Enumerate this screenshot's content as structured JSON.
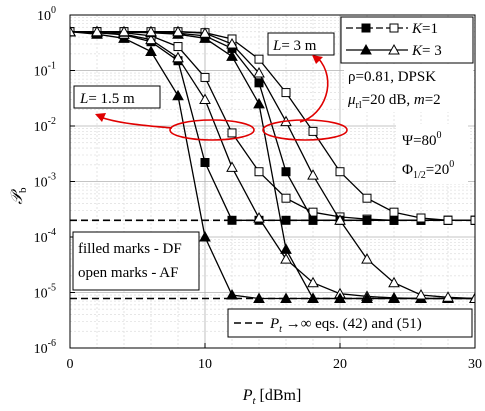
{
  "chart_data": {
    "type": "line",
    "title": "",
    "xlabel_symbol": "P",
    "xlabel_sub": "t",
    "xlabel_unit": " [dBm]",
    "ylabel_symbol": "𝒫",
    "ylabel_sub": "b",
    "xlim": [
      0,
      30
    ],
    "ylim_log10": [
      -6,
      0
    ],
    "ylog": true,
    "grid": true,
    "x_ticks": [
      "0",
      "10",
      "20",
      "30"
    ],
    "y_ticks": [
      "10",
      "10",
      "10",
      "10",
      "10",
      "10",
      "10"
    ],
    "y_tick_exps": [
      "-6",
      "-5",
      "-4",
      "-3",
      "-2",
      "-1",
      "0"
    ],
    "legend": {
      "position": "top-right",
      "entries": [
        {
          "label": "K",
          "value": "=1",
          "marker": "square"
        },
        {
          "label": "K",
          "value": "= 3",
          "marker": "triangle"
        }
      ]
    },
    "series": [
      {
        "group": "L=1.5 m",
        "K": 1,
        "scheme": "DF",
        "filled": true,
        "marker": "square",
        "x": [
          0,
          2,
          4,
          6,
          8,
          10,
          12,
          14,
          16,
          18,
          20,
          22,
          24,
          26,
          28,
          30
        ],
        "y": [
          0.5,
          0.48,
          0.44,
          0.33,
          0.15,
          0.0022,
          0.0002,
          0.0002,
          0.0002,
          0.0002,
          0.0002,
          0.0002,
          0.0002,
          0.0002,
          0.0002,
          0.0002
        ]
      },
      {
        "group": "L=1.5 m",
        "K": 3,
        "scheme": "DF",
        "filled": true,
        "marker": "triangle",
        "x": [
          0,
          2,
          4,
          6,
          8,
          10,
          12,
          14,
          16,
          18,
          20,
          22,
          24,
          26,
          28,
          30
        ],
        "y": [
          0.5,
          0.45,
          0.38,
          0.22,
          0.035,
          0.0001,
          9e-06,
          7.8e-06,
          7.8e-06,
          7.8e-06,
          7.8e-06,
          7.8e-06,
          7.8e-06,
          7.8e-06,
          7.8e-06,
          7.8e-06
        ]
      },
      {
        "group": "L=1.5 m",
        "K": 1,
        "scheme": "AF",
        "filled": false,
        "marker": "square",
        "x": [
          0,
          2,
          4,
          6,
          8,
          10,
          12,
          14,
          16,
          18,
          20,
          22,
          24,
          26,
          28,
          30
        ],
        "y": [
          0.5,
          0.5,
          0.48,
          0.42,
          0.27,
          0.075,
          0.0075,
          0.0015,
          0.0005,
          0.00028,
          0.00023,
          0.00021,
          0.0002,
          0.0002,
          0.0002,
          0.0002
        ]
      },
      {
        "group": "L=1.5 m",
        "K": 3,
        "scheme": "AF",
        "filled": false,
        "marker": "triangle",
        "x": [
          0,
          2,
          4,
          6,
          8,
          10,
          12,
          14,
          16,
          18,
          20,
          22,
          24,
          26,
          28,
          30
        ],
        "y": [
          0.5,
          0.48,
          0.45,
          0.36,
          0.17,
          0.03,
          0.0018,
          0.00022,
          4e-05,
          1.5e-05,
          9.5e-06,
          8.5e-06,
          8e-06,
          7.8e-06,
          7.8e-06,
          7.8e-06
        ]
      },
      {
        "group": "L=3 m",
        "K": 1,
        "scheme": "DF",
        "filled": true,
        "marker": "square",
        "x": [
          0,
          2,
          4,
          6,
          8,
          10,
          12,
          14,
          16,
          18,
          20,
          22,
          24,
          26,
          28,
          30
        ],
        "y": [
          0.5,
          0.5,
          0.5,
          0.49,
          0.47,
          0.42,
          0.25,
          0.06,
          0.0015,
          0.0002,
          0.0002,
          0.0002,
          0.0002,
          0.0002,
          0.0002,
          0.0002
        ]
      },
      {
        "group": "L=3 m",
        "K": 3,
        "scheme": "DF",
        "filled": true,
        "marker": "triangle",
        "x": [
          0,
          2,
          4,
          6,
          8,
          10,
          12,
          14,
          16,
          18,
          20,
          22,
          24,
          26,
          28,
          30
        ],
        "y": [
          0.5,
          0.5,
          0.49,
          0.48,
          0.45,
          0.38,
          0.18,
          0.025,
          6e-05,
          7.8e-06,
          7.8e-06,
          7.8e-06,
          7.8e-06,
          7.8e-06,
          7.8e-06,
          7.8e-06
        ]
      },
      {
        "group": "L=3 m",
        "K": 1,
        "scheme": "AF",
        "filled": false,
        "marker": "square",
        "x": [
          0,
          2,
          4,
          6,
          8,
          10,
          12,
          14,
          16,
          18,
          20,
          22,
          24,
          26,
          28,
          30
        ],
        "y": [
          0.5,
          0.5,
          0.5,
          0.5,
          0.5,
          0.48,
          0.37,
          0.16,
          0.04,
          0.008,
          0.0015,
          0.0005,
          0.00028,
          0.00022,
          0.0002,
          0.0002
        ]
      },
      {
        "group": "L=3 m",
        "K": 3,
        "scheme": "AF",
        "filled": false,
        "marker": "triangle",
        "x": [
          0,
          2,
          4,
          6,
          8,
          10,
          12,
          14,
          16,
          18,
          20,
          22,
          24,
          26,
          28,
          30
        ],
        "y": [
          0.5,
          0.5,
          0.5,
          0.5,
          0.5,
          0.47,
          0.3,
          0.09,
          0.012,
          0.0013,
          0.0002,
          4e-05,
          1.5e-05,
          9e-06,
          8.2e-06,
          7.8e-06
        ]
      }
    ],
    "asymptotes": [
      {
        "y": 0.0002,
        "style": "dashed"
      },
      {
        "y": 7.8e-06,
        "style": "dashed"
      }
    ],
    "annotations": {
      "L3": {
        "text_prefix": "L",
        "text_value": "= 3 m"
      },
      "L15": {
        "text_prefix": "L",
        "text_value": "= 1.5 m"
      },
      "params_line1": "ρ=0.81, DPSK",
      "params_mu": "μ",
      "params_mu_sub": "rl",
      "params_line2_rest": "=20 dB, ",
      "params_m": "m",
      "params_m_val": "=2",
      "psi_text": "Ψ=80",
      "psi_sup": "0",
      "phi_text": "Φ",
      "phi_sub": "1/2",
      "phi_val": "=20",
      "phi_sup": "0",
      "marks_line1": "filled marks - DF",
      "marks_line2": "open marks - AF",
      "asym_P": "P",
      "asym_sub": "t",
      "asym_text": " →∞ eqs. (42) and (51)"
    }
  }
}
